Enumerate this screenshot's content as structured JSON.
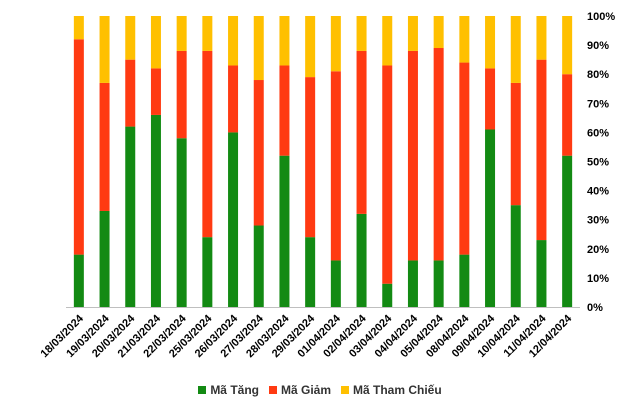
{
  "chart_data": {
    "type": "bar",
    "stacked": true,
    "categories": [
      "18/03/2024",
      "19/03/2024",
      "20/03/2024",
      "21/03/2024",
      "22/03/2024",
      "25/03/2024",
      "26/03/2024",
      "27/03/2024",
      "28/03/2024",
      "29/03/2024",
      "01/04/2024",
      "02/04/2024",
      "03/04/2024",
      "04/04/2024",
      "05/04/2024",
      "08/04/2024",
      "09/04/2024",
      "10/04/2024",
      "11/04/2024",
      "12/04/2024"
    ],
    "series": [
      {
        "name": "Mã Tăng",
        "color": "#138a13",
        "values": [
          18,
          33,
          62,
          66,
          58,
          24,
          60,
          28,
          52,
          24,
          16,
          32,
          8,
          16,
          16,
          18,
          61,
          35,
          23,
          52
        ]
      },
      {
        "name": "Mã Giảm",
        "color": "#ff3a12",
        "values": [
          74,
          44,
          23,
          16,
          30,
          64,
          23,
          50,
          31,
          55,
          65,
          56,
          75,
          72,
          73,
          66,
          21,
          42,
          62,
          28
        ]
      },
      {
        "name": "Mã Tham Chiếu",
        "color": "#ffc000",
        "values": [
          8,
          23,
          15,
          18,
          12,
          12,
          17,
          22,
          17,
          21,
          19,
          12,
          17,
          12,
          11,
          16,
          18,
          23,
          15,
          20
        ]
      }
    ],
    "y_ticks": [
      "0%",
      "10%",
      "20%",
      "30%",
      "40%",
      "50%",
      "60%",
      "70%",
      "80%",
      "90%",
      "100%"
    ],
    "ylim": [
      0,
      100
    ],
    "y_axis_side": "right",
    "legend_position": "bottom",
    "grid": false
  }
}
